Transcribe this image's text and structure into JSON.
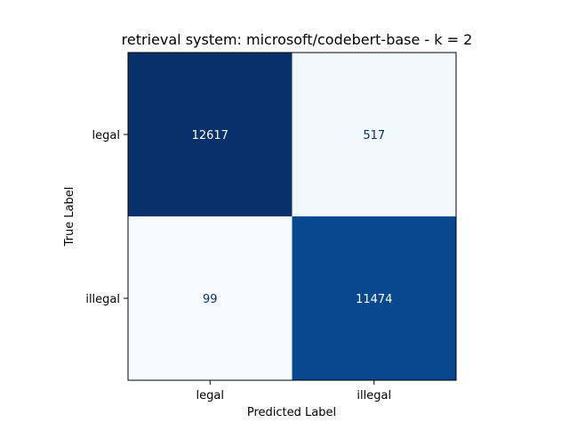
{
  "chart_data": {
    "type": "heatmap",
    "title": "retrieval system: microsoft/codebert-base - k = 2",
    "xlabel": "Predicted Label",
    "ylabel": "True Label",
    "x_categories": [
      "legal",
      "illegal"
    ],
    "y_categories": [
      "legal",
      "illegal"
    ],
    "values": [
      [
        12617,
        517
      ],
      [
        99,
        11474
      ]
    ],
    "colormap": "Blues",
    "colormap_range": [
      "#f7fbff",
      "#08306b"
    ],
    "text_color_light": "#ffffff",
    "text_color_dark": "#08306b",
    "grid": false,
    "colorbar": false
  }
}
